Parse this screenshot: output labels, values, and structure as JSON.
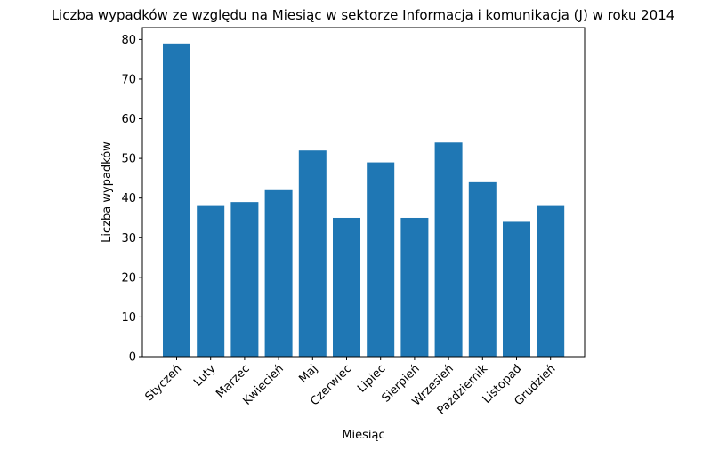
{
  "chart_data": {
    "type": "bar",
    "title": "Liczba wypadków ze względu na Miesiąc w sektorze Informacja i komunikacja  (J)   w roku 2014",
    "xlabel": "Miesiąc",
    "ylabel": "Liczba wypadków",
    "categories": [
      "Styczeń",
      "Luty",
      "Marzec",
      "Kwiecień",
      "Maj",
      "Czerwiec",
      "Lipiec",
      "Sierpień",
      "Wrzesień",
      "Październik",
      "Listopad",
      "Grudzień"
    ],
    "values": [
      79,
      38,
      39,
      42,
      52,
      35,
      49,
      35,
      54,
      44,
      34,
      38
    ],
    "ylim": [
      0,
      83
    ],
    "yticks": [
      0,
      10,
      20,
      30,
      40,
      50,
      60,
      70,
      80
    ],
    "grid": false,
    "legend": "none",
    "bar_color": "#1f77b4"
  }
}
